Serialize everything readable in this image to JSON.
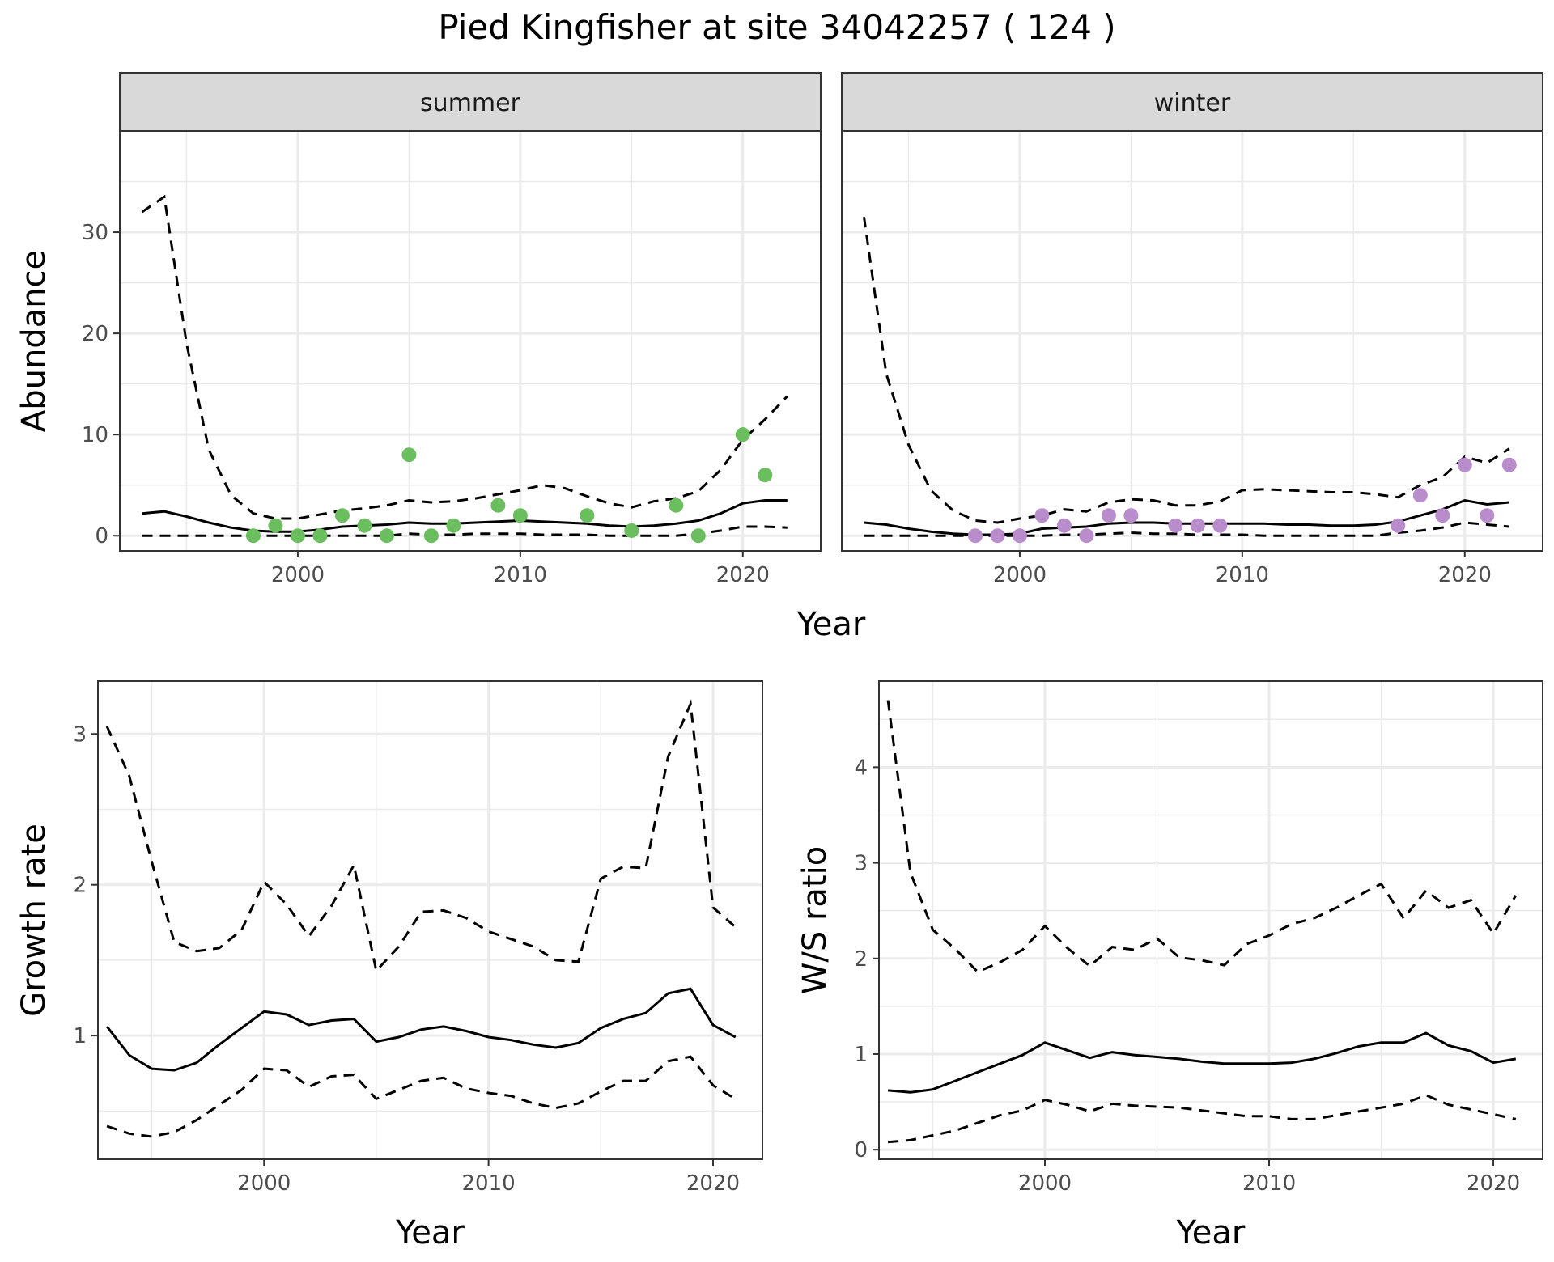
{
  "title": "Pied Kingfisher at site 34042257 ( 124 )",
  "colors": {
    "summer_points": "#6ABE5E",
    "winter_points": "#B98CCB",
    "lines": "#000000",
    "grid": "#EBEBEB",
    "strip_bg": "#D9D9D9"
  },
  "chart_data": [
    {
      "type": "line",
      "panel": "abundance",
      "facets": [
        "summer",
        "winter"
      ],
      "xlabel": "Year",
      "ylabel": "Abundance",
      "xlim": [
        1992,
        2023.5
      ],
      "ylim": [
        -1.5,
        40
      ],
      "xticks": [
        2000,
        2010,
        2020
      ],
      "yticks": [
        0,
        10,
        20,
        30
      ],
      "grid": true,
      "facet_data": {
        "summer": {
          "x": [
            1993,
            1994,
            1995,
            1996,
            1997,
            1998,
            1999,
            2000,
            2001,
            2002,
            2003,
            2004,
            2005,
            2006,
            2007,
            2008,
            2009,
            2010,
            2011,
            2012,
            2013,
            2014,
            2015,
            2016,
            2017,
            2018,
            2019,
            2020,
            2021,
            2022
          ],
          "mean": [
            2.2,
            2.4,
            1.9,
            1.3,
            0.8,
            0.5,
            0.4,
            0.4,
            0.6,
            0.9,
            1.0,
            1.1,
            1.3,
            1.2,
            1.2,
            1.3,
            1.4,
            1.5,
            1.4,
            1.3,
            1.2,
            1.0,
            0.9,
            1.0,
            1.2,
            1.5,
            2.2,
            3.2,
            3.5,
            3.5
          ],
          "upper": [
            32,
            33.5,
            19,
            8.5,
            4,
            2.2,
            1.7,
            1.7,
            2.1,
            2.5,
            2.7,
            3.0,
            3.5,
            3.3,
            3.4,
            3.7,
            4.1,
            4.5,
            5.0,
            4.7,
            3.9,
            3.2,
            2.8,
            3.4,
            3.7,
            4.4,
            6.5,
            9.5,
            11.5,
            13.8
          ],
          "lower": [
            0,
            0,
            0,
            0,
            0,
            0,
            0,
            0,
            0,
            0,
            0,
            0,
            0.2,
            0.1,
            0.1,
            0.2,
            0.2,
            0.2,
            0.1,
            0.1,
            0.1,
            0,
            0,
            0,
            0,
            0.2,
            0.5,
            0.9,
            0.9,
            0.8
          ],
          "points": {
            "x": [
              1998,
              1999,
              2000,
              2001,
              2002,
              2003,
              2004,
              2005,
              2006,
              2007,
              2009,
              2010,
              2013,
              2015,
              2017,
              2018,
              2020,
              2021
            ],
            "y": [
              0,
              1,
              0,
              0,
              2,
              1,
              0,
              8,
              0,
              1,
              3,
              2,
              2,
              0.5,
              3,
              0,
              10,
              6
            ]
          }
        },
        "winter": {
          "x": [
            1993,
            1994,
            1995,
            1996,
            1997,
            1998,
            1999,
            2000,
            2001,
            2002,
            2003,
            2004,
            2005,
            2006,
            2007,
            2008,
            2009,
            2010,
            2011,
            2012,
            2013,
            2014,
            2015,
            2016,
            2017,
            2018,
            2019,
            2020,
            2021,
            2022
          ],
          "mean": [
            1.3,
            1.1,
            0.7,
            0.4,
            0.2,
            0.1,
            0.1,
            0.2,
            0.7,
            0.8,
            0.9,
            1.2,
            1.3,
            1.3,
            1.2,
            1.2,
            1.2,
            1.2,
            1.2,
            1.1,
            1.1,
            1.0,
            1.0,
            1.1,
            1.4,
            2.0,
            2.6,
            3.5,
            3.1,
            3.3
          ],
          "upper": [
            31.5,
            16,
            9,
            4.5,
            2.5,
            1.5,
            1.3,
            1.7,
            2.0,
            2.6,
            2.4,
            3.3,
            3.6,
            3.5,
            3.0,
            3.0,
            3.4,
            4.5,
            4.6,
            4.5,
            4.4,
            4.3,
            4.3,
            4.1,
            3.8,
            5.0,
            5.8,
            7.8,
            7.2,
            8.6
          ],
          "lower": [
            0,
            0,
            0,
            0,
            0,
            0,
            0,
            0,
            0,
            0.1,
            0.1,
            0.2,
            0.3,
            0.2,
            0.2,
            0.1,
            0.1,
            0.1,
            0,
            0,
            0,
            0,
            0,
            0,
            0.3,
            0.5,
            0.8,
            1.3,
            1.1,
            0.9
          ],
          "points": {
            "x": [
              1998,
              1999,
              2000,
              2001,
              2002,
              2003,
              2004,
              2005,
              2007,
              2008,
              2009,
              2017,
              2018,
              2019,
              2020,
              2021,
              2022
            ],
            "y": [
              0,
              0,
              0,
              2,
              1,
              0,
              2,
              2,
              1,
              1,
              1,
              1,
              4,
              2,
              7,
              2,
              7
            ]
          }
        }
      }
    },
    {
      "type": "line",
      "panel": "growth",
      "xlabel": "Year",
      "ylabel": "Growth rate",
      "xlim": [
        1992.6,
        2022.2
      ],
      "ylim": [
        0.18,
        3.35
      ],
      "xticks": [
        2000,
        2010,
        2020
      ],
      "yticks": [
        1,
        2,
        3
      ],
      "grid": true,
      "x": [
        1993,
        1994,
        1995,
        1996,
        1997,
        1998,
        1999,
        2000,
        2001,
        2002,
        2003,
        2004,
        2005,
        2006,
        2007,
        2008,
        2009,
        2010,
        2011,
        2012,
        2013,
        2014,
        2015,
        2016,
        2017,
        2018,
        2019,
        2020,
        2021
      ],
      "mean": [
        1.06,
        0.87,
        0.78,
        0.77,
        0.82,
        0.94,
        1.05,
        1.16,
        1.14,
        1.07,
        1.1,
        1.11,
        0.96,
        0.99,
        1.04,
        1.06,
        1.03,
        0.99,
        0.97,
        0.94,
        0.92,
        0.95,
        1.05,
        1.11,
        1.15,
        1.28,
        1.31,
        1.07,
        0.99
      ],
      "upper": [
        3.05,
        2.72,
        2.15,
        1.62,
        1.56,
        1.58,
        1.7,
        2.02,
        1.87,
        1.66,
        1.86,
        2.13,
        1.43,
        1.59,
        1.82,
        1.83,
        1.78,
        1.69,
        1.64,
        1.59,
        1.5,
        1.49,
        2.04,
        2.12,
        2.11,
        2.85,
        3.2,
        1.85,
        1.72
      ],
      "lower": [
        0.4,
        0.35,
        0.33,
        0.36,
        0.44,
        0.54,
        0.64,
        0.78,
        0.77,
        0.66,
        0.73,
        0.74,
        0.58,
        0.64,
        0.7,
        0.72,
        0.65,
        0.62,
        0.6,
        0.55,
        0.52,
        0.55,
        0.63,
        0.7,
        0.7,
        0.83,
        0.86,
        0.67,
        0.58
      ]
    },
    {
      "type": "line",
      "panel": "ws_ratio",
      "xlabel": "Year",
      "ylabel": "W/S ratio",
      "xlim": [
        1992.6,
        2022.2
      ],
      "ylim": [
        -0.1,
        4.9
      ],
      "xticks": [
        2000,
        2010,
        2020
      ],
      "yticks": [
        0,
        1,
        2,
        3,
        4
      ],
      "grid": true,
      "x": [
        1993,
        1994,
        1995,
        1996,
        1997,
        1998,
        1999,
        2000,
        2001,
        2002,
        2003,
        2004,
        2005,
        2006,
        2007,
        2008,
        2009,
        2010,
        2011,
        2012,
        2013,
        2014,
        2015,
        2016,
        2017,
        2018,
        2019,
        2020,
        2021
      ],
      "mean": [
        0.62,
        0.6,
        0.63,
        0.72,
        0.81,
        0.9,
        0.99,
        1.12,
        1.04,
        0.96,
        1.02,
        0.99,
        0.97,
        0.95,
        0.92,
        0.9,
        0.9,
        0.9,
        0.91,
        0.95,
        1.01,
        1.08,
        1.12,
        1.12,
        1.22,
        1.09,
        1.03,
        0.91,
        0.95
      ],
      "upper": [
        4.7,
        2.9,
        2.3,
        2.1,
        1.86,
        1.96,
        2.09,
        2.34,
        2.11,
        1.92,
        2.12,
        2.09,
        2.21,
        2.01,
        1.98,
        1.93,
        2.15,
        2.24,
        2.36,
        2.42,
        2.53,
        2.66,
        2.78,
        2.42,
        2.71,
        2.53,
        2.61,
        2.26,
        2.66
      ],
      "lower": [
        0.08,
        0.1,
        0.15,
        0.2,
        0.28,
        0.36,
        0.41,
        0.52,
        0.47,
        0.4,
        0.48,
        0.46,
        0.45,
        0.44,
        0.41,
        0.38,
        0.35,
        0.35,
        0.32,
        0.32,
        0.36,
        0.4,
        0.44,
        0.48,
        0.57,
        0.47,
        0.42,
        0.37,
        0.32
      ]
    }
  ]
}
